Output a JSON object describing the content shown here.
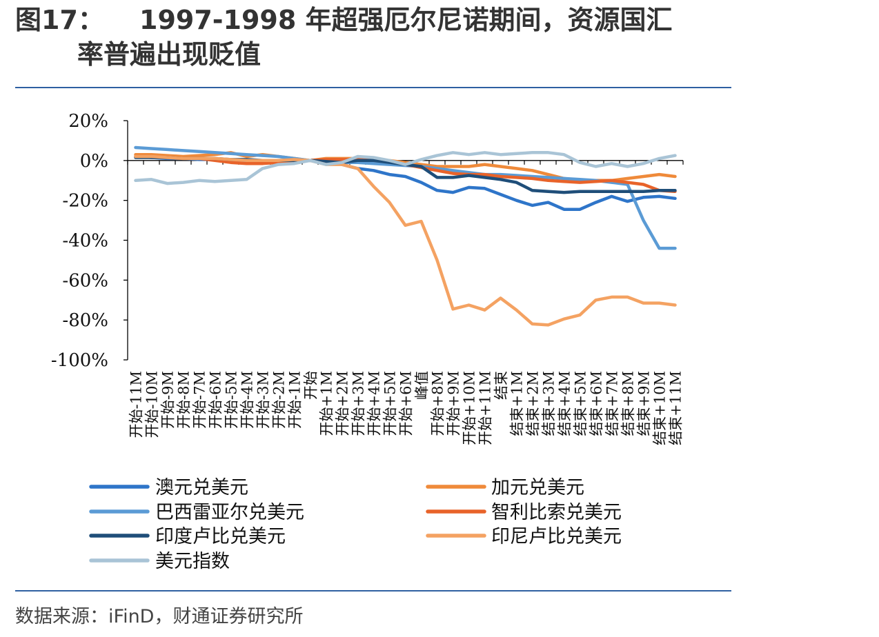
{
  "figure": {
    "label": "图17：",
    "title_line1": "1997-1998 年超强厄尔尼诺期间，资源国汇",
    "title_line2": "率普遍出现贬值",
    "source": "数据来源：iFinD，财通证券研究所"
  },
  "colors": {
    "rule": "#2e5fa1",
    "aud": "#2e75c9",
    "cad": "#ef8a3a",
    "brl": "#5b9bd5",
    "clp": "#e8632a",
    "inr": "#1f4e79",
    "idr": "#f4a262",
    "dxy": "#a9c4d6"
  },
  "chart_data": {
    "type": "line",
    "title": "",
    "xlabel": "",
    "ylabel": "",
    "ylim": [
      -100,
      20
    ],
    "yticks": [
      "20%",
      "0%",
      "-20%",
      "-40%",
      "-60%",
      "-80%",
      "-100%"
    ],
    "categories": [
      "开始-11M",
      "开始-10M",
      "开始-9M",
      "开始-8M",
      "开始-7M",
      "开始-6M",
      "开始-5M",
      "开始-4M",
      "开始-3M",
      "开始-2M",
      "开始-1M",
      "开始",
      "开始+1M",
      "开始+2M",
      "开始+3M",
      "开始+4M",
      "开始+5M",
      "开始+6M",
      "峰值",
      "开始+8M",
      "开始+9M",
      "开始+10M",
      "开始+11M",
      "结束",
      "结束+1M",
      "结束+2M",
      "结束+3M",
      "结束+4M",
      "结束+5M",
      "结束+6M",
      "结束+7M",
      "结束+8M",
      "结束+9M",
      "结束+10M",
      "结束+11M"
    ],
    "legend_placement": "bottom",
    "grid": false,
    "series": [
      {
        "name": "澳元兑美元",
        "color": "#2e75c9",
        "values": [
          2,
          1.5,
          1,
          1,
          0.5,
          0.5,
          0,
          -0.5,
          -1,
          -1,
          -0.5,
          0,
          -0.5,
          -2,
          -4,
          -5,
          -7,
          -8,
          -11,
          -15,
          -16,
          -13.5,
          -14,
          -17,
          -20,
          -22.5,
          -21,
          -24.5,
          -24.5,
          -21,
          -18,
          -20.5,
          -18.5,
          -18,
          -19
        ]
      },
      {
        "name": "加元兑美元",
        "color": "#ef8a3a",
        "values": [
          3,
          3,
          2.5,
          2,
          2.5,
          3,
          4,
          2,
          3,
          2,
          1,
          0,
          1,
          1,
          1,
          0,
          0,
          -1,
          -2,
          -3,
          -3,
          -3,
          -2,
          -3,
          -4,
          -5,
          -7,
          -9,
          -10,
          -10,
          -10,
          -9,
          -8,
          -7,
          -8
        ]
      },
      {
        "name": "巴西雷亚尔兑美元",
        "color": "#5b9bd5",
        "values": [
          6.5,
          6,
          5.5,
          5,
          4.5,
          4,
          3.5,
          3,
          2.5,
          2,
          1,
          0,
          -0.5,
          -1,
          -1,
          -1.5,
          -2,
          -2.5,
          -3,
          -4,
          -5,
          -6,
          -7,
          -7,
          -7.5,
          -8,
          -8.5,
          -9,
          -9.5,
          -10,
          -11,
          -12,
          -30,
          -44,
          -44
        ]
      },
      {
        "name": "智利比索兑美元",
        "color": "#e8632a",
        "values": [
          2,
          2,
          1.5,
          1,
          1,
          0,
          -1,
          -1.5,
          -1.5,
          -1,
          -0.5,
          0,
          0.5,
          0.5,
          0.5,
          0,
          -0.5,
          -2,
          -3.5,
          -5,
          -6.5,
          -7,
          -7,
          -8,
          -8.5,
          -9,
          -10,
          -10.5,
          -11,
          -10.5,
          -10,
          -11,
          -12,
          -15,
          -15.5
        ]
      },
      {
        "name": "印度卢比兑美元",
        "color": "#1f4e79",
        "values": [
          1.5,
          1.5,
          1.5,
          1,
          1,
          1,
          0.5,
          0.5,
          0,
          0,
          0,
          0,
          -0.5,
          -1,
          0,
          0,
          -1,
          -2,
          -3,
          -8.5,
          -8.5,
          -7.5,
          -8.5,
          -9.5,
          -11,
          -15,
          -15.5,
          -16,
          -15.5,
          -15.5,
          -15.5,
          -15.5,
          -15.5,
          -15,
          -15
        ]
      },
      {
        "name": "印尼卢比兑美元",
        "color": "#f4a262",
        "values": [
          2,
          2,
          1.5,
          1,
          1,
          1,
          0.5,
          0,
          0,
          0,
          0.5,
          0,
          -2,
          -2,
          -4,
          -13,
          -21,
          -32.5,
          -30.5,
          -50,
          -74.5,
          -72.5,
          -75,
          -69,
          -75,
          -82,
          -82.5,
          -79.5,
          -77.5,
          -70,
          -68.5,
          -68.5,
          -71.5,
          -71.5,
          -72.5
        ]
      },
      {
        "name": "美元指数",
        "color": "#a9c4d6",
        "values": [
          -10,
          -9.5,
          -11.5,
          -11,
          -10,
          -10.5,
          -10,
          -9.5,
          -4,
          -2,
          -1.5,
          0,
          -2,
          -1,
          2,
          1.5,
          0,
          -2,
          0.5,
          2.5,
          4,
          3,
          4,
          3,
          3.5,
          4,
          4,
          3,
          -1,
          -3,
          -1.5,
          -3,
          -1.5,
          1,
          2.5
        ]
      }
    ]
  }
}
